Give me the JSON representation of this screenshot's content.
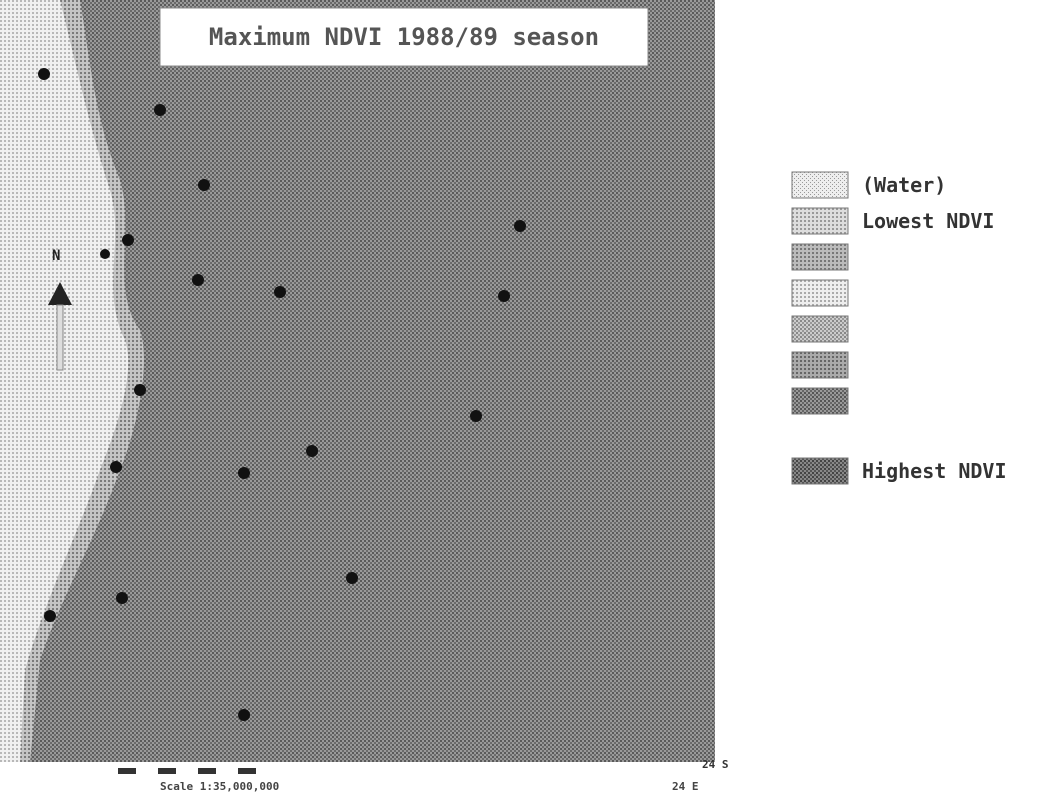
{
  "map": {
    "title": "Maximum NDVI 1988/89 season",
    "north": "N",
    "scale": "Scale 1:35,000,000",
    "latitude": "24 S",
    "longitude": "24 E"
  },
  "legend": {
    "items": [
      "(Water)",
      "Lowest NDVI",
      "Highest NDVI"
    ]
  }
}
